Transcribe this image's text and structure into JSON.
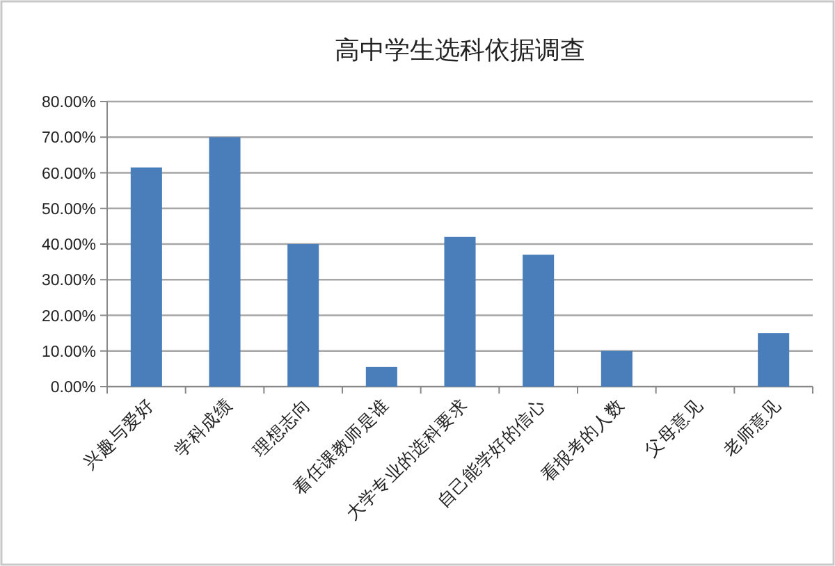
{
  "chart_data": {
    "type": "bar",
    "title": "高中学生选科依据调查",
    "categories": [
      "兴趣与爱好",
      "学科成绩",
      "理想志向",
      "看任课教师是谁",
      "大学专业的选科要求",
      "自己能学好的信心",
      "看报考的人数",
      "父母意见",
      "老师意见"
    ],
    "values": [
      61.5,
      70,
      40,
      5.5,
      42,
      37,
      10,
      0,
      15
    ],
    "color": "#4a7ebb",
    "ylim": [
      0,
      80
    ],
    "yticks": [
      {
        "value": 0,
        "label": "0.00%"
      },
      {
        "value": 10,
        "label": "10.00%"
      },
      {
        "value": 20,
        "label": "20.00%"
      },
      {
        "value": 30,
        "label": "30.00%"
      },
      {
        "value": 40,
        "label": "40.00%"
      },
      {
        "value": 50,
        "label": "50.00%"
      },
      {
        "value": 60,
        "label": "60.00%"
      },
      {
        "value": 70,
        "label": "70.00%"
      },
      {
        "value": 80,
        "label": "80.00%"
      }
    ],
    "grid": "y"
  }
}
